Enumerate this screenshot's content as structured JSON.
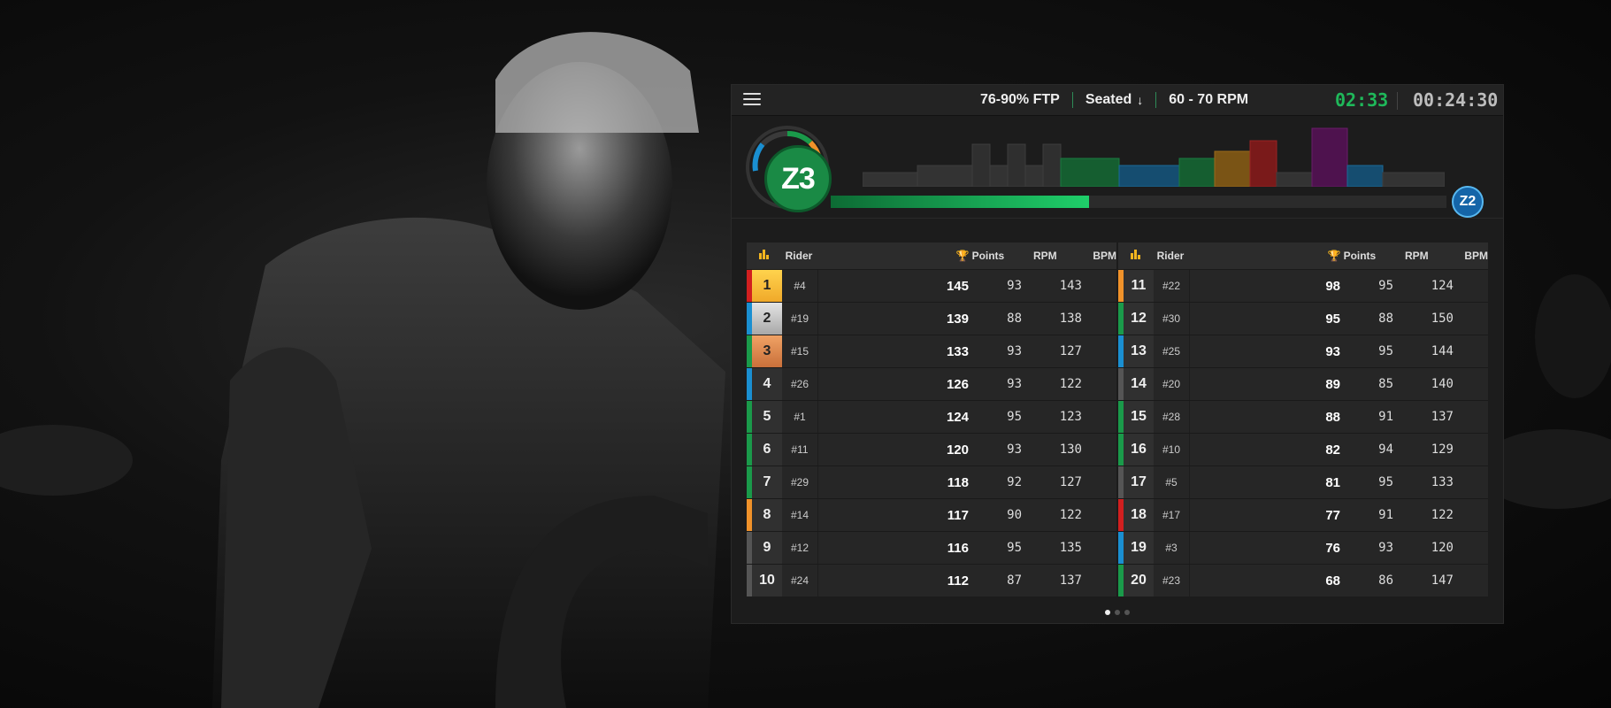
{
  "topbar": {
    "ftp": "76-90% FTP",
    "position": "Seated",
    "cadence": "60 - 70 RPM",
    "interval_timer": "02:33",
    "total_timer": "00:24:30"
  },
  "zone": {
    "current": "Z3",
    "next": "Z2",
    "progress": 0.42,
    "colors": {
      "current": "#1a8a45",
      "next": "#1565a8"
    }
  },
  "headers": {
    "rider": "Rider",
    "points": "Points",
    "rpm": "RPM",
    "bpm": "BPM"
  },
  "leaderboard_left": [
    {
      "rank": "1",
      "rider": "#4",
      "points": "145",
      "rpm": "93",
      "bpm": "143",
      "zone_color": "#d11f1f",
      "medal": "gold"
    },
    {
      "rank": "2",
      "rider": "#19",
      "points": "139",
      "rpm": "88",
      "bpm": "138",
      "zone_color": "#1a8fd1",
      "medal": "silver"
    },
    {
      "rank": "3",
      "rider": "#15",
      "points": "133",
      "rpm": "93",
      "bpm": "127",
      "zone_color": "#1a9a4a",
      "medal": "bronze"
    },
    {
      "rank": "4",
      "rider": "#26",
      "points": "126",
      "rpm": "93",
      "bpm": "122",
      "zone_color": "#1a8fd1",
      "medal": ""
    },
    {
      "rank": "5",
      "rider": "#1",
      "points": "124",
      "rpm": "95",
      "bpm": "123",
      "zone_color": "#1a9a4a",
      "medal": ""
    },
    {
      "rank": "6",
      "rider": "#11",
      "points": "120",
      "rpm": "93",
      "bpm": "130",
      "zone_color": "#1a9a4a",
      "medal": ""
    },
    {
      "rank": "7",
      "rider": "#29",
      "points": "118",
      "rpm": "92",
      "bpm": "127",
      "zone_color": "#1a9a4a",
      "medal": ""
    },
    {
      "rank": "8",
      "rider": "#14",
      "points": "117",
      "rpm": "90",
      "bpm": "122",
      "zone_color": "#f0922a",
      "medal": ""
    },
    {
      "rank": "9",
      "rider": "#12",
      "points": "116",
      "rpm": "95",
      "bpm": "135",
      "zone_color": "#555555",
      "medal": ""
    },
    {
      "rank": "10",
      "rider": "#24",
      "points": "112",
      "rpm": "87",
      "bpm": "137",
      "zone_color": "#555555",
      "medal": ""
    }
  ],
  "leaderboard_right": [
    {
      "rank": "11",
      "rider": "#22",
      "points": "98",
      "rpm": "95",
      "bpm": "124",
      "zone_color": "#f0922a"
    },
    {
      "rank": "12",
      "rider": "#30",
      "points": "95",
      "rpm": "88",
      "bpm": "150",
      "zone_color": "#1a9a4a"
    },
    {
      "rank": "13",
      "rider": "#25",
      "points": "93",
      "rpm": "95",
      "bpm": "144",
      "zone_color": "#1a8fd1"
    },
    {
      "rank": "14",
      "rider": "#20",
      "points": "89",
      "rpm": "85",
      "bpm": "140",
      "zone_color": "#555555"
    },
    {
      "rank": "15",
      "rider": "#28",
      "points": "88",
      "rpm": "91",
      "bpm": "137",
      "zone_color": "#1a9a4a"
    },
    {
      "rank": "16",
      "rider": "#10",
      "points": "82",
      "rpm": "94",
      "bpm": "129",
      "zone_color": "#1a9a4a"
    },
    {
      "rank": "17",
      "rider": "#5",
      "points": "81",
      "rpm": "95",
      "bpm": "133",
      "zone_color": "#555555"
    },
    {
      "rank": "18",
      "rider": "#17",
      "points": "77",
      "rpm": "91",
      "bpm": "122",
      "zone_color": "#d11f1f"
    },
    {
      "rank": "19",
      "rider": "#3",
      "points": "76",
      "rpm": "93",
      "bpm": "120",
      "zone_color": "#1a8fd1"
    },
    {
      "rank": "20",
      "rider": "#23",
      "points": "68",
      "rpm": "86",
      "bpm": "147",
      "zone_color": "#1a9a4a"
    }
  ],
  "pager": {
    "pages": 3,
    "active": 0
  }
}
